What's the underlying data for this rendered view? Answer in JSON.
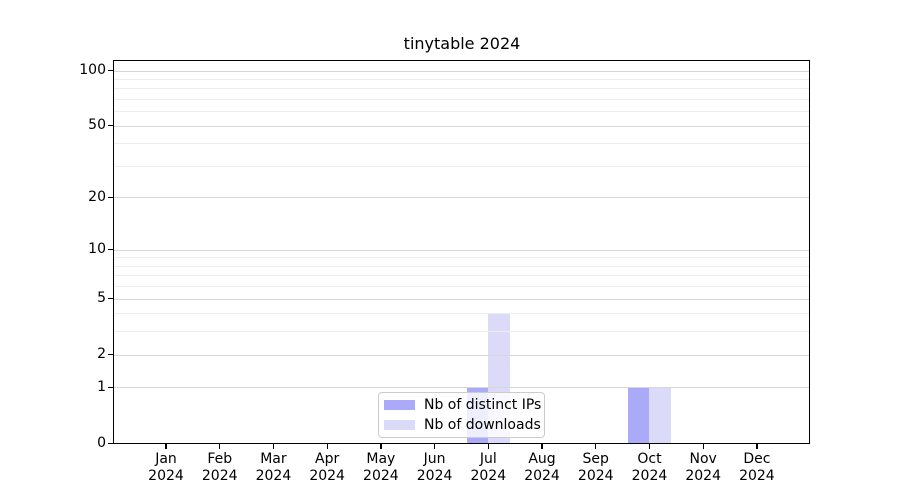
{
  "title": "tinytable 2024",
  "chart_data": {
    "type": "bar",
    "title": "tinytable 2024",
    "categories": [
      "Jan 2024",
      "Feb 2024",
      "Mar 2024",
      "Apr 2024",
      "May 2024",
      "Jun 2024",
      "Jul 2024",
      "Aug 2024",
      "Sep 2024",
      "Oct 2024",
      "Nov 2024",
      "Dec 2024"
    ],
    "series": [
      {
        "name": "Nb of distinct IPs",
        "color": "#aaaaf9",
        "values": [
          0,
          0,
          0,
          0,
          0,
          0,
          1,
          0,
          0,
          1,
          0,
          0
        ]
      },
      {
        "name": "Nb of downloads",
        "color": "#dbdbf9",
        "values": [
          0,
          0,
          0,
          0,
          0,
          0,
          4,
          0,
          0,
          1,
          0,
          0
        ]
      }
    ],
    "xlabel": "",
    "ylabel": "",
    "yscale": "log1p",
    "ylim": [
      0,
      100
    ],
    "y_major_ticks": [
      0,
      1,
      2,
      5,
      10,
      20,
      50,
      100
    ],
    "y_minor_gridlines": [
      3,
      4,
      6,
      7,
      8,
      9,
      30,
      40,
      60,
      70,
      80,
      90
    ],
    "grid": true,
    "legend_position": "lower center inside",
    "colors": {
      "spine": "#000000",
      "grid_major": "#d6d6d6",
      "grid_minor": "#ededed",
      "background": "#ffffff"
    }
  }
}
